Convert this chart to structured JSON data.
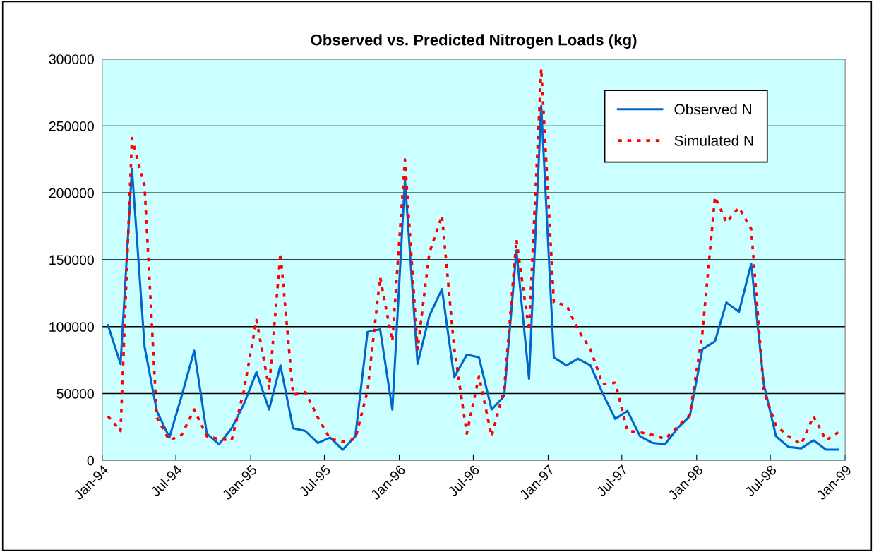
{
  "chart_data": {
    "type": "line",
    "title": "Observed vs. Predicted Nitrogen Loads (kg)",
    "x": [
      "1994-01-15",
      "1994-02-15",
      "1994-03-15",
      "1994-04-15",
      "1994-05-15",
      "1994-06-15",
      "1994-07-15",
      "1994-08-15",
      "1994-09-15",
      "1994-10-15",
      "1994-11-15",
      "1994-12-15",
      "1995-01-15",
      "1995-02-15",
      "1995-03-15",
      "1995-04-15",
      "1995-05-15",
      "1995-06-15",
      "1995-07-15",
      "1995-08-15",
      "1995-09-15",
      "1995-10-15",
      "1995-11-15",
      "1995-12-15",
      "1996-01-15",
      "1996-02-15",
      "1996-03-15",
      "1996-04-15",
      "1996-05-15",
      "1996-06-15",
      "1996-07-15",
      "1996-08-15",
      "1996-09-15",
      "1996-10-15",
      "1996-11-15",
      "1996-12-15",
      "1997-01-15",
      "1997-02-15",
      "1997-03-15",
      "1997-04-15",
      "1997-05-15",
      "1997-06-15",
      "1997-07-15",
      "1997-08-15",
      "1997-09-15",
      "1997-10-15",
      "1997-11-15",
      "1997-12-15",
      "1998-01-15",
      "1998-02-15",
      "1998-03-15",
      "1998-04-15",
      "1998-05-15",
      "1998-06-15",
      "1998-07-15",
      "1998-08-15",
      "1998-09-15",
      "1998-10-15",
      "1998-11-15",
      "1998-12-15"
    ],
    "series": [
      {
        "name": "Observed N",
        "color": "#0066cc",
        "line_style": "solid",
        "values": [
          101000,
          72000,
          218000,
          85000,
          37000,
          17000,
          48000,
          82000,
          20000,
          12000,
          24000,
          42000,
          66000,
          38000,
          71000,
          24000,
          22000,
          13000,
          17000,
          8000,
          18000,
          96000,
          98000,
          38000,
          210000,
          72000,
          108000,
          128000,
          62000,
          79000,
          77000,
          38000,
          48000,
          157000,
          61000,
          265000,
          77000,
          71000,
          76000,
          71000,
          50000,
          31000,
          37000,
          18000,
          13000,
          12000,
          24000,
          33000,
          83000,
          89000,
          118000,
          111000,
          147000,
          57000,
          18000,
          10000,
          9000,
          15000,
          8000,
          8000
        ]
      },
      {
        "name": "Simulated N",
        "color": "#ff0000",
        "line_style": "dotted",
        "values": [
          33000,
          22000,
          241000,
          205000,
          32000,
          15000,
          19000,
          38000,
          18000,
          16000,
          15000,
          52000,
          105000,
          54000,
          155000,
          49000,
          51000,
          32000,
          16000,
          14000,
          16000,
          52000,
          137000,
          89000,
          225000,
          83000,
          155000,
          183000,
          84000,
          20000,
          63000,
          18000,
          53000,
          165000,
          97000,
          293000,
          118000,
          116000,
          98000,
          83000,
          57000,
          58000,
          22000,
          21000,
          19000,
          16000,
          25000,
          34000,
          95000,
          197000,
          178000,
          189000,
          173000,
          52000,
          26000,
          18000,
          12000,
          33000,
          15000,
          21000
        ]
      }
    ],
    "xlim": [
      "1994-01-01",
      "1999-01-01"
    ],
    "xticks": [
      {
        "value": "1994-01-01",
        "label": "Jan-94"
      },
      {
        "value": "1994-07-01",
        "label": "Jul-94"
      },
      {
        "value": "1995-01-01",
        "label": "Jan-95"
      },
      {
        "value": "1995-07-01",
        "label": "Jul-95"
      },
      {
        "value": "1996-01-01",
        "label": "Jan-96"
      },
      {
        "value": "1996-07-01",
        "label": "Jul-96"
      },
      {
        "value": "1997-01-01",
        "label": "Jan-97"
      },
      {
        "value": "1997-07-01",
        "label": "Jul-97"
      },
      {
        "value": "1998-01-01",
        "label": "Jan-98"
      },
      {
        "value": "1998-07-01",
        "label": "Jul-98"
      },
      {
        "value": "1999-01-01",
        "label": "Jan-99"
      }
    ],
    "ylim": [
      0,
      300000
    ],
    "yticks": [
      0,
      50000,
      100000,
      150000,
      200000,
      250000,
      300000
    ],
    "grid": "y",
    "legend": "top right",
    "marker": "none"
  }
}
